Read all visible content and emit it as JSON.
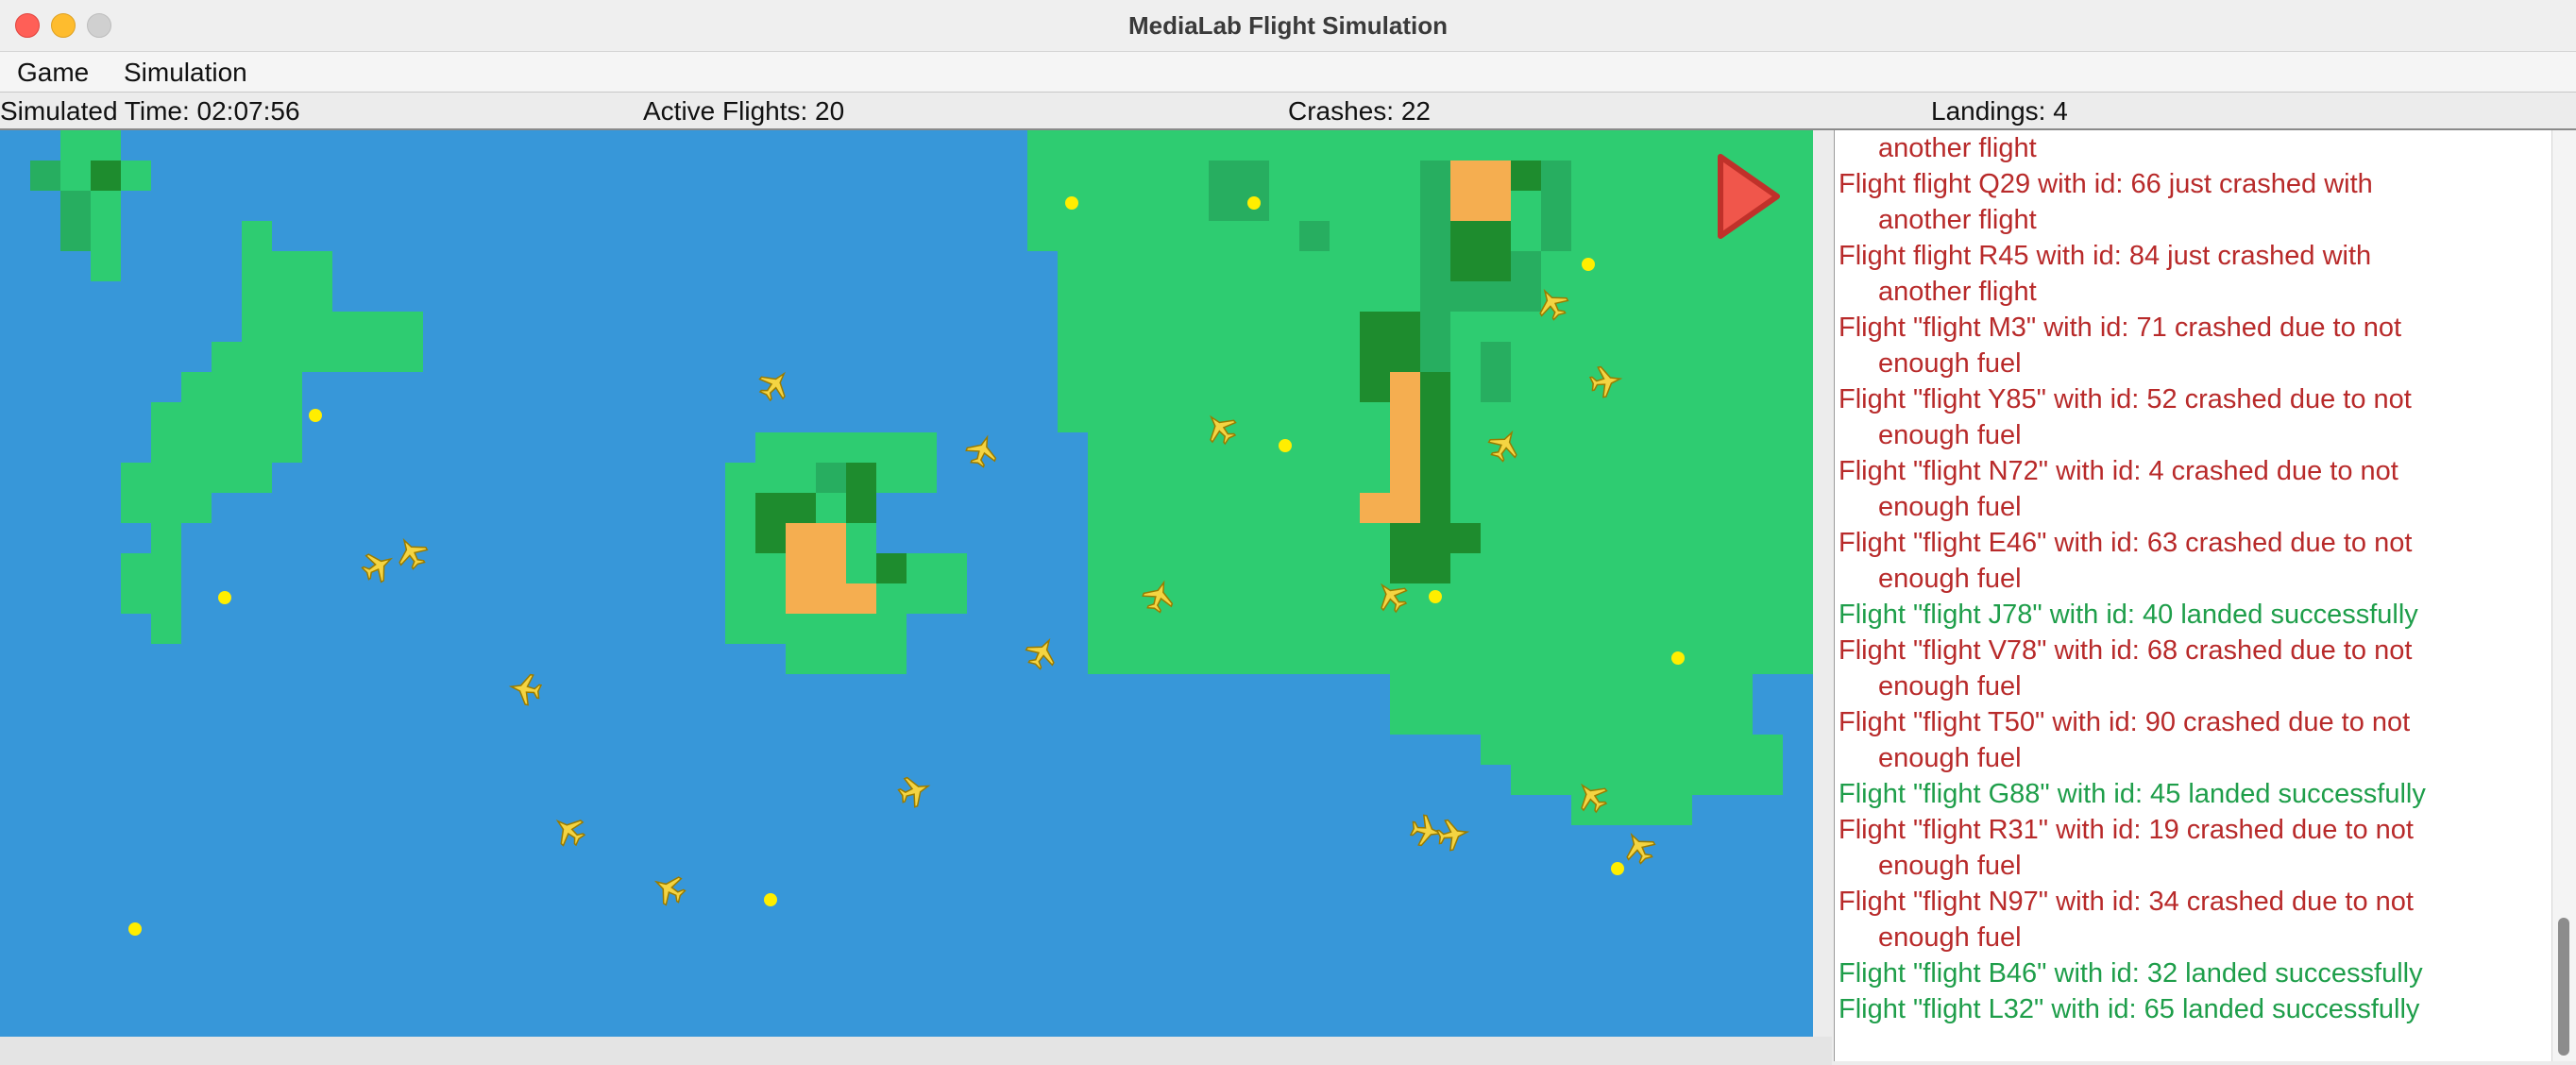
{
  "window": {
    "title": "MediaLab Flight Simulation"
  },
  "menu": {
    "items": [
      "Game",
      "Simulation"
    ]
  },
  "status": {
    "time": "Simulated Time: 02:07:56",
    "active": "Active Flights: 20",
    "crashes": "Crashes: 22",
    "landings": "Landings: 4"
  },
  "icons": {
    "airplane": "airplane-icon",
    "airport": "airport-dot",
    "play": "play-triangle-icon"
  },
  "colors": {
    "sea": "#3797d9",
    "land": "#2ecc71",
    "forest_light": "#27ae60",
    "forest": "#1e8c2e",
    "desert": "#f5ae50",
    "plane": "#f4d442",
    "airport": "#ffee00",
    "crash_text": "#b82a2a",
    "landed_text": "#1e9e4a",
    "play": "#f0564b"
  },
  "log": [
    {
      "type": "crash",
      "lines": [
        "another flight"
      ]
    },
    {
      "type": "crash",
      "lines": [
        "Flight flight Q29 with id: 66 just crashed with",
        "another flight"
      ]
    },
    {
      "type": "crash",
      "lines": [
        "Flight flight R45 with id: 84 just crashed with",
        "another flight"
      ]
    },
    {
      "type": "crash",
      "lines": [
        "Flight \"flight M3\" with id: 71 crashed due to not",
        "enough fuel"
      ]
    },
    {
      "type": "crash",
      "lines": [
        "Flight \"flight Y85\" with id: 52 crashed due to not",
        "enough fuel"
      ]
    },
    {
      "type": "crash",
      "lines": [
        "Flight \"flight N72\" with id: 4 crashed due to not",
        "enough fuel"
      ]
    },
    {
      "type": "crash",
      "lines": [
        "Flight \"flight E46\" with id: 63 crashed due to not",
        "enough fuel"
      ]
    },
    {
      "type": "landed",
      "lines": [
        "Flight \"flight J78\" with id: 40 landed successfully"
      ]
    },
    {
      "type": "crash",
      "lines": [
        "Flight \"flight V78\" with id: 68 crashed due to not",
        "enough fuel"
      ]
    },
    {
      "type": "crash",
      "lines": [
        "Flight \"flight T50\" with id: 90 crashed due to not",
        "enough fuel"
      ]
    },
    {
      "type": "landed",
      "lines": [
        "Flight \"flight G88\" with id: 45 landed successfully"
      ]
    },
    {
      "type": "crash",
      "lines": [
        "Flight \"flight R31\" with id: 19 crashed due to not",
        "enough fuel"
      ]
    },
    {
      "type": "crash",
      "lines": [
        "Flight \"flight N97\" with id: 34 crashed due to not",
        "enough fuel"
      ]
    },
    {
      "type": "landed",
      "lines": [
        "Flight \"flight B46\" with id: 32 landed successfully"
      ]
    },
    {
      "type": "landed",
      "lines": [
        "Flight \"flight L32\" with id: 65 landed successfully"
      ]
    }
  ]
}
